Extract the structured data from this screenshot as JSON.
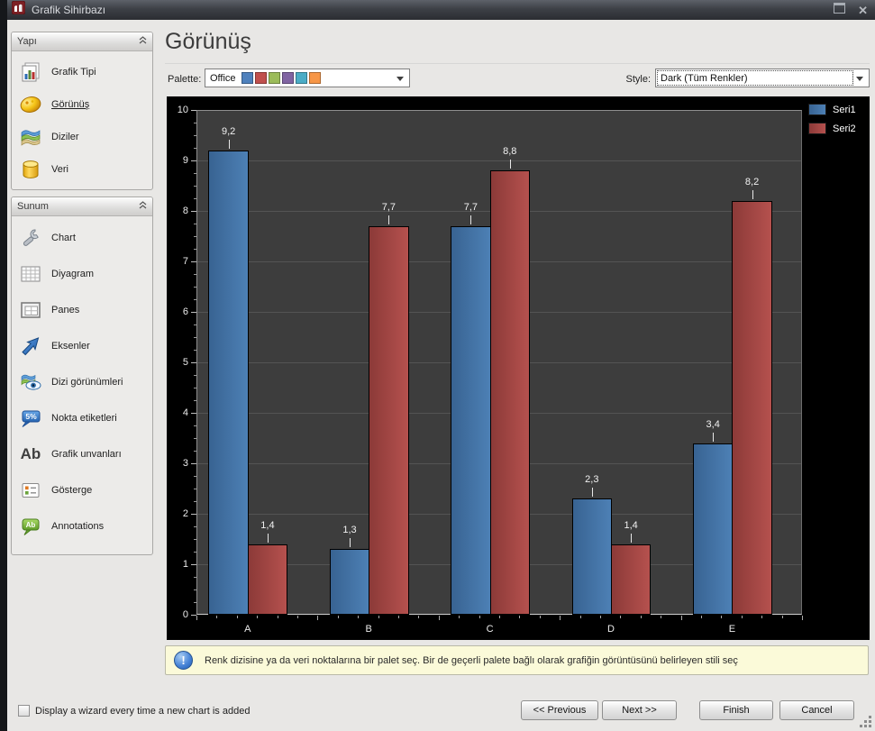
{
  "window": {
    "title": "Grafik Sihirbazı"
  },
  "sidebar": {
    "yapi": {
      "title": "Yapı",
      "items": [
        {
          "label": "Grafik Tipi"
        },
        {
          "label": "Görünüş",
          "selected": true
        },
        {
          "label": "Diziler"
        },
        {
          "label": "Veri"
        }
      ]
    },
    "sunum": {
      "title": "Sunum",
      "items": [
        {
          "label": "Chart"
        },
        {
          "label": "Diyagram"
        },
        {
          "label": "Panes"
        },
        {
          "label": "Eksenler"
        },
        {
          "label": "Dizi görünümleri"
        },
        {
          "label": "Nokta etiketleri"
        },
        {
          "label": "Grafik unvanları"
        },
        {
          "label": "Gösterge"
        },
        {
          "label": "Annotations"
        }
      ]
    }
  },
  "main": {
    "title": "Görünüş",
    "palette": {
      "label": "Palette:",
      "value": "Office",
      "swatches": [
        "#4f81bd",
        "#c0504d",
        "#9bbb59",
        "#8064a2",
        "#4bacc6",
        "#f79646"
      ]
    },
    "style": {
      "label": "Style:",
      "value": "Dark (Tüm Renkler)"
    }
  },
  "chart_data": {
    "type": "bar",
    "categories": [
      "A",
      "B",
      "C",
      "D",
      "E"
    ],
    "series": [
      {
        "name": "Seri1",
        "values": [
          9.2,
          1.3,
          7.7,
          2.3,
          3.4
        ],
        "color_light": "#4d80b5",
        "color_dark": "#386392"
      },
      {
        "name": "Seri2",
        "values": [
          1.4,
          7.7,
          8.8,
          1.4,
          8.2
        ],
        "color_light": "#b5514e",
        "color_dark": "#8c3a38"
      }
    ],
    "ylim": [
      0,
      10
    ],
    "y_tick_step": 1,
    "grid": true,
    "value_labels": true,
    "decimal_separator": ",",
    "legend_position": "top-right",
    "plot_bg": "#3d3d3d",
    "chart_bg": "#000000",
    "grid_color": "#545454",
    "text_color": "#ececec"
  },
  "icon_glyphs": {
    "nokta_etiketleri": "5%",
    "grafik_unvanlari": "Ab",
    "annotations": "Ab",
    "info": "!",
    "close": "✕"
  },
  "info_bar": {
    "text": "Renk dizisine ya da veri noktalarına bir palet seç. Bir de geçerli palete bağlı olarak grafiğin görüntüsünü belirleyen stili seç"
  },
  "footer": {
    "checkbox_label": "Display a wizard every time a new chart is added",
    "checkbox_checked": false,
    "buttons": {
      "previous": "<< Previous",
      "next": "Next >>",
      "finish": "Finish",
      "cancel": "Cancel"
    }
  }
}
